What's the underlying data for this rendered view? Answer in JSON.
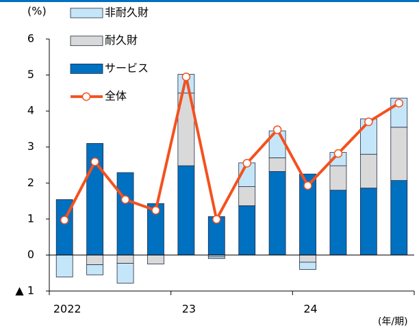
{
  "chart_data": {
    "type": "bar",
    "y_unit": "(%)",
    "x_unit": "(年/期)",
    "categories": [
      "2022",
      null,
      null,
      null,
      "23",
      null,
      null,
      null,
      "24",
      null,
      null,
      null
    ],
    "ylim": [
      -1,
      6
    ],
    "yticks": [
      {
        "value": -1,
        "label": "▲ 1"
      },
      0,
      1,
      2,
      3,
      4,
      5,
      6
    ],
    "series": [
      {
        "name": "サービス",
        "color": "#0070c0",
        "values": [
          1.54,
          3.1,
          2.29,
          1.43,
          2.48,
          1.07,
          1.37,
          2.32,
          2.25,
          1.8,
          1.86,
          2.07
        ]
      },
      {
        "name": "耐久財",
        "color": "#d9d9d9",
        "values": [
          0,
          -0.27,
          -0.23,
          -0.25,
          2.02,
          -0.05,
          0.53,
          0.38,
          -0.2,
          0.68,
          0.94,
          1.48
        ]
      },
      {
        "name": "非耐久財",
        "color": "#c5e6f8",
        "values": [
          -0.61,
          -0.28,
          -0.55,
          0,
          0.52,
          -0.05,
          0.66,
          0.75,
          -0.2,
          0.37,
          0.98,
          0.81
        ]
      },
      {
        "name": "全体",
        "type": "line",
        "color": "#f4511e",
        "values": [
          0.97,
          2.59,
          1.54,
          1.24,
          4.95,
          0.99,
          2.55,
          3.48,
          1.93,
          2.82,
          3.7,
          4.22
        ]
      }
    ]
  }
}
